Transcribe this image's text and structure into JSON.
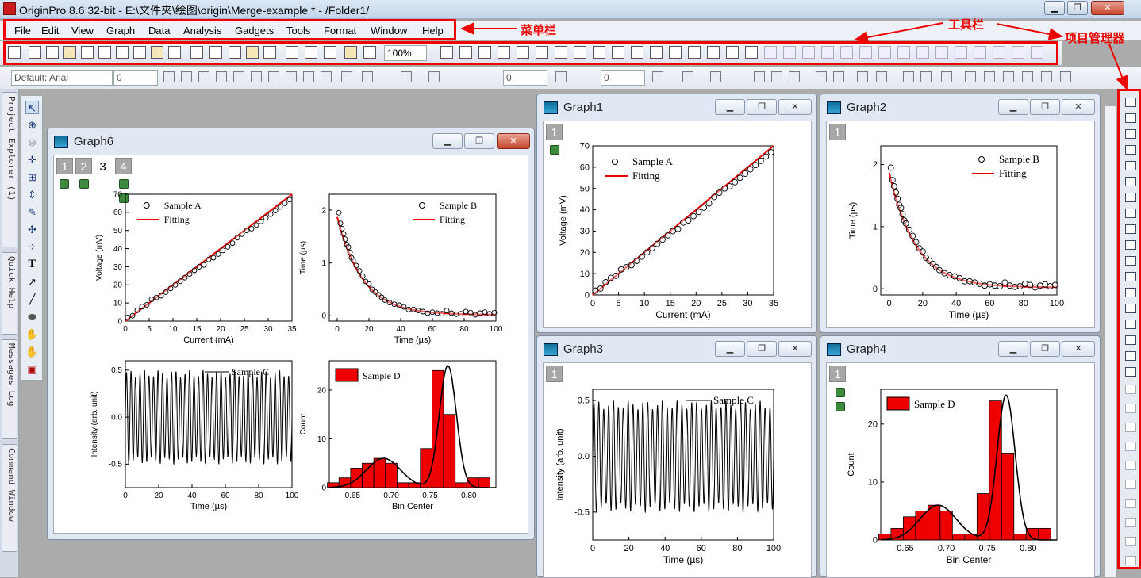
{
  "window": {
    "title": "OriginPro 8.6 32-bit - E:\\文件夹\\绘图\\origin\\Merge-example * - /Folder1/"
  },
  "menu": [
    "File",
    "Edit",
    "View",
    "Graph",
    "Data",
    "Analysis",
    "Gadgets",
    "Tools",
    "Format",
    "Window",
    "Help"
  ],
  "annotations": {
    "menubar": "菜单栏",
    "toolbar": "工具栏",
    "project_manager": "项目管理器"
  },
  "toolbar": {
    "zoom": "100%",
    "font": "Default: Arial",
    "font_size": "0",
    "line_width": "0",
    "border_width": "0"
  },
  "side_tabs": [
    "Project Explorer (1)",
    "Quick Help",
    "Messages Log",
    "Command Window"
  ],
  "graph6": {
    "title": "Graph6",
    "layers": [
      "1",
      "2",
      "3",
      "4"
    ],
    "active": "3"
  },
  "graph1": {
    "title": "Graph1",
    "layer": "1"
  },
  "graph2": {
    "title": "Graph2",
    "layer": "1"
  },
  "graph3": {
    "title": "Graph3",
    "layer": "1"
  },
  "graph4": {
    "title": "Graph4",
    "layer": "1"
  },
  "colors": {
    "fit": "#ee0000",
    "bar": "#ee0000",
    "annotation": "#ee0000"
  },
  "chart_data": [
    {
      "id": "A",
      "type": "scatter",
      "xlabel": "Current (mA)",
      "ylabel": "Voltage (mV)",
      "xlim": [
        0,
        35
      ],
      "ylim": [
        0,
        70
      ],
      "xticks": [
        0,
        5,
        10,
        15,
        20,
        25,
        30,
        35
      ],
      "yticks": [
        0,
        10,
        20,
        30,
        40,
        50,
        60,
        70
      ],
      "legend": [
        "Sample A",
        "Fitting"
      ],
      "x": [
        0.5,
        1.5,
        2.5,
        3.5,
        4.5,
        5.5,
        6.5,
        7.5,
        8.5,
        9.5,
        10.5,
        11.5,
        12.5,
        13.5,
        14.5,
        15.5,
        16.5,
        17.5,
        18.5,
        19.5,
        20.5,
        21.5,
        22.5,
        23.5,
        24.5,
        25.5,
        26.5,
        27.5,
        28.5,
        29.5,
        30.5,
        31.5,
        32.5,
        33.5,
        34.5
      ],
      "y": [
        2,
        3,
        6,
        8,
        9,
        12,
        13,
        14,
        16,
        18,
        20,
        22,
        24,
        26,
        28,
        30,
        31,
        34,
        35,
        37,
        39,
        41,
        43,
        46,
        48,
        50,
        51,
        53,
        55,
        57,
        59,
        61,
        63,
        65,
        67
      ],
      "fit": {
        "x": [
          0,
          35
        ],
        "y": [
          0,
          70
        ]
      }
    },
    {
      "id": "B",
      "type": "scatter",
      "xlabel": "Time (µs)",
      "ylabel": "Time (µs)",
      "xlim": [
        -5,
        100
      ],
      "ylim": [
        -0.1,
        2.3
      ],
      "xticks": [
        0,
        20,
        40,
        60,
        80,
        100
      ],
      "yticks": [
        0,
        1,
        2
      ],
      "legend": [
        "Sample B",
        "Fitting"
      ],
      "x": [
        1,
        2,
        3,
        4,
        5,
        6,
        7,
        8,
        9,
        10,
        12,
        14,
        16,
        18,
        20,
        22,
        24,
        26,
        28,
        30,
        33,
        36,
        39,
        42,
        45,
        48,
        51,
        54,
        57,
        60,
        63,
        66,
        69,
        72,
        75,
        78,
        81,
        84,
        87,
        90,
        93,
        96,
        99
      ],
      "y": [
        1.95,
        1.75,
        1.65,
        1.55,
        1.45,
        1.35,
        1.3,
        1.2,
        1.1,
        1.05,
        0.95,
        0.85,
        0.75,
        0.65,
        0.6,
        0.5,
        0.45,
        0.4,
        0.35,
        0.3,
        0.25,
        0.22,
        0.2,
        0.17,
        0.12,
        0.12,
        0.1,
        0.08,
        0.05,
        0.07,
        0.05,
        0.04,
        0.1,
        0.05,
        0.03,
        0.04,
        0.08,
        0.06,
        0.02,
        0.05,
        0.07,
        0.04,
        0.06
      ],
      "fit": {
        "a": 1.85,
        "tau": 16,
        "c": 0.02
      }
    },
    {
      "id": "C",
      "type": "line",
      "xlabel": "Time (µs)",
      "ylabel": "Intensity (arb. unit)",
      "xlim": [
        0,
        100
      ],
      "ylim": [
        -0.75,
        0.6
      ],
      "xticks": [
        0,
        20,
        40,
        60,
        80,
        100
      ],
      "yticks": [
        -0.5,
        0.0,
        0.5
      ],
      "legend": [
        "Sample C"
      ],
      "amplitude": 0.5,
      "cycles": 37
    },
    {
      "id": "D",
      "type": "bar",
      "xlabel": "Bin Center",
      "ylabel": "Count",
      "xlim": [
        0.62,
        0.835
      ],
      "ylim": [
        0,
        26
      ],
      "xticks": [
        0.65,
        0.7,
        0.75,
        0.8
      ],
      "yticks": [
        0,
        10,
        20
      ],
      "legend": [
        "Sample D"
      ],
      "categories": [
        0.625,
        0.64,
        0.655,
        0.67,
        0.685,
        0.7,
        0.715,
        0.73,
        0.745,
        0.76,
        0.775,
        0.79,
        0.805,
        0.82
      ],
      "values": [
        1,
        2,
        4,
        5,
        6,
        5,
        1,
        1,
        8,
        24,
        15,
        1,
        2,
        2
      ],
      "fit": {
        "g1": {
          "a": 6,
          "mu": 0.69,
          "s": 0.022
        },
        "g2": {
          "a": 25,
          "mu": 0.773,
          "s": 0.011
        }
      }
    }
  ]
}
